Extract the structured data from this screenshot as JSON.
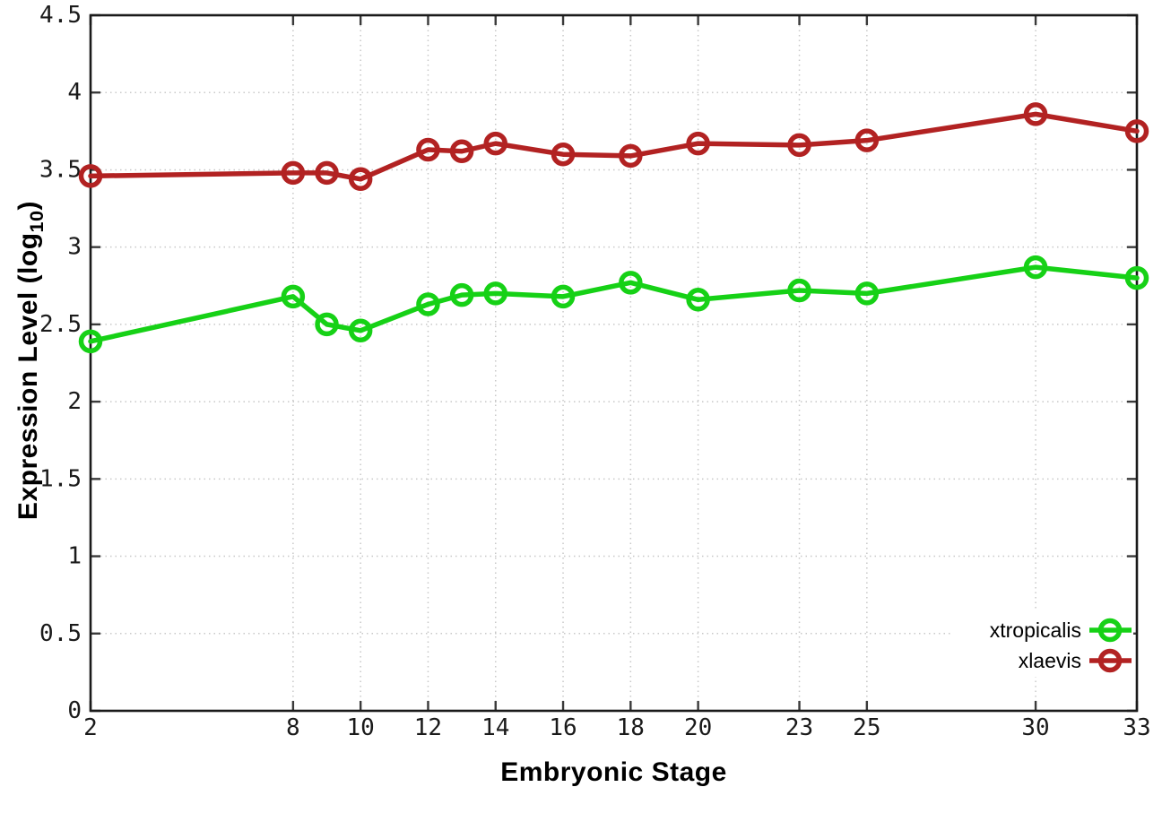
{
  "chart_data": {
    "type": "line",
    "title": "",
    "xlabel": "Embryonic Stage",
    "ylabel": "Expression Level (log10)",
    "ylabel_rich": {
      "prefix": "Expression Level (log",
      "sub": "10",
      "suffix": ")"
    },
    "x": [
      2,
      8,
      9,
      10,
      12,
      13,
      14,
      16,
      18,
      20,
      23,
      25,
      30,
      33
    ],
    "x_ticks": [
      2,
      8,
      10,
      12,
      14,
      16,
      18,
      20,
      23,
      25,
      30,
      33
    ],
    "y_ticks": [
      0,
      0.5,
      1,
      1.5,
      2,
      2.5,
      3,
      3.5,
      4,
      4.5
    ],
    "xlim": [
      2,
      33
    ],
    "ylim": [
      0,
      4.5
    ],
    "grid": true,
    "legend_position": "bottom-right",
    "series": [
      {
        "name": "xtropicalis",
        "color": "#16d116",
        "values": [
          2.39,
          2.68,
          2.5,
          2.46,
          2.63,
          2.69,
          2.7,
          2.68,
          2.77,
          2.66,
          2.72,
          2.7,
          2.87,
          2.8
        ]
      },
      {
        "name": "xlaevis",
        "color": "#b22222",
        "values": [
          3.46,
          3.48,
          3.48,
          3.44,
          3.63,
          3.62,
          3.67,
          3.6,
          3.59,
          3.67,
          3.66,
          3.69,
          3.86,
          3.75
        ]
      }
    ],
    "colors": {
      "background": "#ffffff",
      "border": "#1a1a1a",
      "grid": "#c8c8c8",
      "tick_text": "#1a1a1a"
    }
  }
}
